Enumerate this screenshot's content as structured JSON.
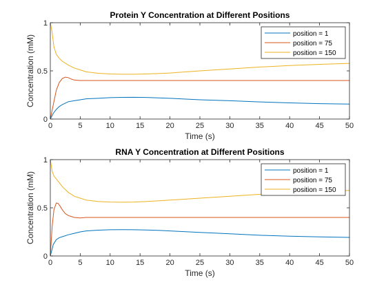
{
  "chart_data": [
    {
      "type": "line",
      "title": "Protein Y Concentration at Different Positions",
      "xlabel": "Time (s)",
      "ylabel": "Concentration (mM)",
      "xlim": [
        0,
        50
      ],
      "ylim": [
        0,
        1
      ],
      "xticks": [
        0,
        5,
        10,
        15,
        20,
        25,
        30,
        35,
        40,
        45,
        50
      ],
      "yticks": [
        0,
        0.5,
        1
      ],
      "ytick_labels": [
        "0",
        "0.5",
        "1"
      ],
      "grid": false,
      "legend_position": "top-right",
      "series": [
        {
          "name": "position = 1",
          "color": "#0072BD",
          "x": [
            0,
            0.5,
            1,
            1.5,
            2,
            3,
            4,
            5,
            6,
            8,
            10,
            12,
            14,
            16,
            18,
            20,
            25,
            30,
            35,
            40,
            45,
            50
          ],
          "y": [
            0,
            0.06,
            0.1,
            0.13,
            0.15,
            0.18,
            0.19,
            0.2,
            0.21,
            0.215,
            0.222,
            0.225,
            0.226,
            0.224,
            0.22,
            0.215,
            0.2,
            0.19,
            0.178,
            0.168,
            0.16,
            0.155
          ]
        },
        {
          "name": "position = 75",
          "color": "#D95319",
          "x": [
            0,
            0.5,
            1,
            1.5,
            2,
            2.5,
            3,
            3.5,
            4,
            5,
            6,
            8,
            10,
            20,
            30,
            40,
            50
          ],
          "y": [
            0,
            0.15,
            0.3,
            0.38,
            0.42,
            0.435,
            0.43,
            0.415,
            0.405,
            0.4,
            0.4,
            0.4,
            0.4,
            0.4,
            0.4,
            0.4,
            0.4
          ]
        },
        {
          "name": "position = 150",
          "color": "#EDB120",
          "x": [
            0,
            0.3,
            0.6,
            1,
            1.5,
            2,
            3,
            4,
            5,
            6,
            8,
            10,
            12,
            14,
            16,
            18,
            20,
            25,
            30,
            35,
            40,
            45,
            50
          ],
          "y": [
            1,
            0.9,
            0.75,
            0.67,
            0.63,
            0.6,
            0.56,
            0.53,
            0.51,
            0.49,
            0.475,
            0.468,
            0.465,
            0.465,
            0.468,
            0.472,
            0.478,
            0.5,
            0.52,
            0.54,
            0.555,
            0.568,
            0.578
          ]
        }
      ]
    },
    {
      "type": "line",
      "title": "RNA Y Concentration at Different Positions",
      "xlabel": "Time (s)",
      "ylabel": "Concentration (mM)",
      "xlim": [
        0,
        50
      ],
      "ylim": [
        0,
        1
      ],
      "xticks": [
        0,
        5,
        10,
        15,
        20,
        25,
        30,
        35,
        40,
        45,
        50
      ],
      "yticks": [
        0,
        0.5,
        1
      ],
      "ytick_labels": [
        "0",
        "0.5",
        "1"
      ],
      "grid": false,
      "legend_position": "top-right",
      "series": [
        {
          "name": "position = 1",
          "color": "#0072BD",
          "x": [
            0,
            0.5,
            1,
            1.5,
            2,
            3,
            4,
            5,
            6,
            8,
            10,
            12,
            14,
            16,
            18,
            20,
            25,
            30,
            35,
            40,
            45,
            50
          ],
          "y": [
            0,
            0.12,
            0.17,
            0.19,
            0.2,
            0.22,
            0.235,
            0.25,
            0.26,
            0.268,
            0.272,
            0.273,
            0.272,
            0.27,
            0.266,
            0.26,
            0.245,
            0.23,
            0.215,
            0.205,
            0.198,
            0.193
          ]
        },
        {
          "name": "position = 75",
          "color": "#D95319",
          "x": [
            0,
            0.3,
            0.6,
            1,
            1.3,
            1.6,
            2,
            2.5,
            3,
            3.5,
            4,
            5,
            6,
            8,
            10,
            20,
            30,
            40,
            50
          ],
          "y": [
            0,
            0.3,
            0.48,
            0.55,
            0.545,
            0.52,
            0.48,
            0.44,
            0.42,
            0.41,
            0.4,
            0.395,
            0.4,
            0.4,
            0.4,
            0.4,
            0.4,
            0.4,
            0.4
          ]
        },
        {
          "name": "position = 150",
          "color": "#EDB120",
          "x": [
            0,
            0.3,
            0.6,
            1,
            1.5,
            2,
            3,
            4,
            5,
            6,
            8,
            10,
            12,
            14,
            16,
            18,
            20,
            25,
            30,
            35,
            40,
            45,
            50
          ],
          "y": [
            1,
            0.88,
            0.83,
            0.8,
            0.76,
            0.72,
            0.66,
            0.62,
            0.6,
            0.58,
            0.565,
            0.56,
            0.558,
            0.56,
            0.565,
            0.572,
            0.58,
            0.6,
            0.62,
            0.64,
            0.655,
            0.668,
            0.68
          ]
        }
      ]
    }
  ]
}
